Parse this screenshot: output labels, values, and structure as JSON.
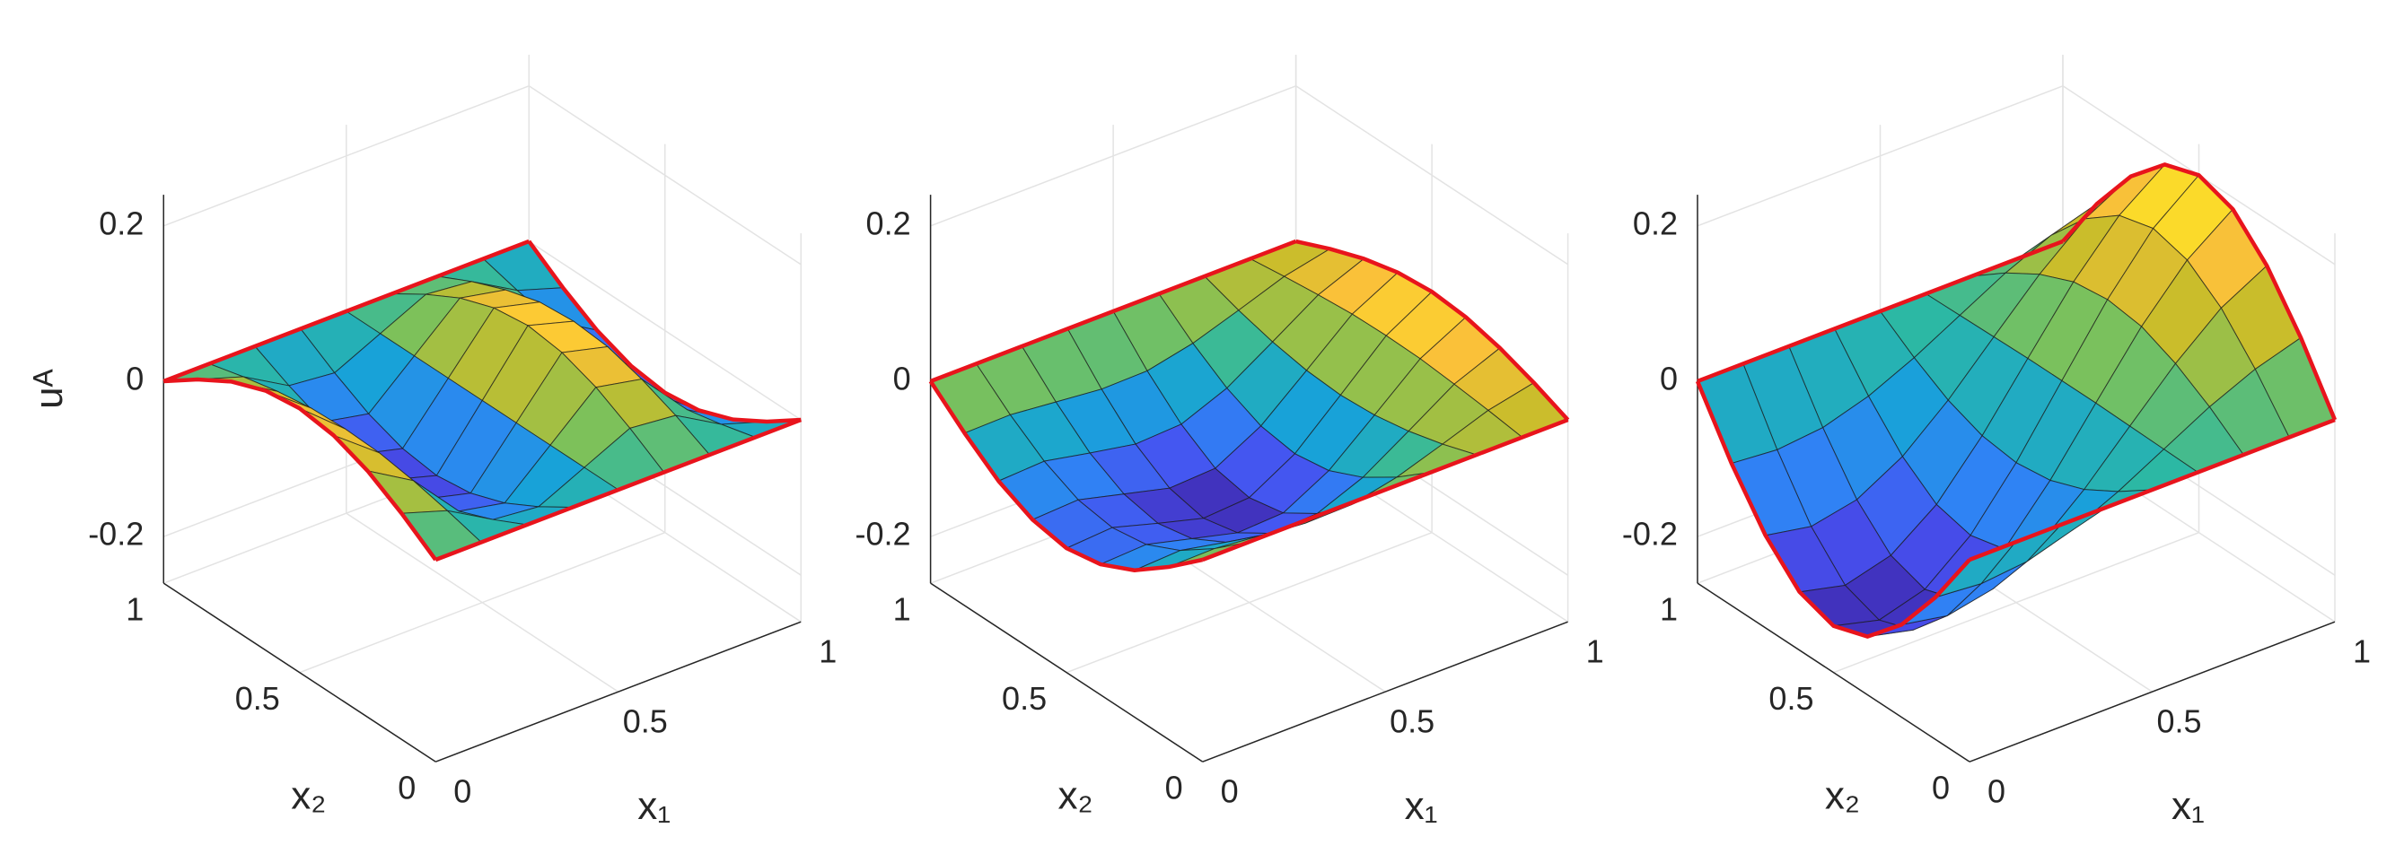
{
  "chart_data": [
    {
      "type": "surface",
      "colormap": "parula",
      "grid": true,
      "xlabel": "x₁",
      "ylabel": "x₂",
      "zlabel": "uᴬ",
      "x": [
        0,
        0.125,
        0.25,
        0.375,
        0.5,
        0.625,
        0.75,
        0.875,
        1
      ],
      "y": [
        0,
        0.125,
        0.25,
        0.375,
        0.5,
        0.625,
        0.75,
        0.875,
        1
      ],
      "z": [
        [
          0,
          0,
          0,
          0,
          0,
          0,
          0,
          0,
          0
        ],
        [
          0.031,
          0.012,
          -0.022,
          -0.028,
          0,
          0.028,
          0.022,
          -0.012,
          -0.031
        ],
        [
          0.057,
          0.022,
          -0.04,
          -0.052,
          0,
          0.052,
          0.04,
          -0.022,
          -0.057
        ],
        [
          0.074,
          0.029,
          -0.053,
          -0.068,
          0,
          0.068,
          0.053,
          -0.029,
          -0.074
        ],
        [
          0.08,
          0.031,
          -0.057,
          -0.074,
          0,
          0.074,
          0.057,
          -0.031,
          -0.08
        ],
        [
          0.074,
          0.029,
          -0.053,
          -0.068,
          0,
          0.068,
          0.053,
          -0.029,
          -0.074
        ],
        [
          0.057,
          0.022,
          -0.04,
          -0.052,
          0,
          0.052,
          0.04,
          -0.022,
          -0.057
        ],
        [
          0.031,
          0.012,
          -0.022,
          -0.028,
          0,
          0.028,
          0.022,
          -0.012,
          -0.031
        ],
        [
          0,
          0,
          0,
          0,
          0,
          0,
          0,
          0,
          0
        ]
      ],
      "xlim": [
        0,
        1
      ],
      "ylim": [
        0,
        1
      ],
      "zlim": [
        -0.26,
        0.24
      ],
      "xticks": [
        0,
        0.5,
        1
      ],
      "yticks": [
        0,
        0.5,
        1
      ],
      "zticks": [
        -0.2,
        0,
        0.2
      ]
    },
    {
      "type": "surface",
      "colormap": "parula",
      "grid": true,
      "xlabel": "x₁",
      "ylabel": "x₂",
      "x": [
        0,
        0.125,
        0.25,
        0.375,
        0.5,
        0.625,
        0.75,
        0.875,
        1
      ],
      "y": [
        0,
        0.125,
        0.25,
        0.375,
        0.5,
        0.625,
        0.75,
        0.875,
        1
      ],
      "z": [
        [
          0,
          0,
          0,
          0,
          0,
          0,
          0,
          0,
          0
        ],
        [
          -0.038,
          -0.037,
          -0.043,
          -0.049,
          -0.048,
          -0.035,
          -0.015,
          0.006,
          0.019
        ],
        [
          -0.071,
          -0.068,
          -0.08,
          -0.091,
          -0.088,
          -0.064,
          -0.027,
          0.011,
          0.035
        ],
        [
          -0.092,
          -0.089,
          -0.104,
          -0.119,
          -0.116,
          -0.084,
          -0.035,
          0.015,
          0.046
        ],
        [
          -0.1,
          -0.096,
          -0.113,
          -0.129,
          -0.125,
          -0.091,
          -0.038,
          0.016,
          0.05
        ],
        [
          -0.092,
          -0.089,
          -0.104,
          -0.119,
          -0.116,
          -0.084,
          -0.035,
          0.015,
          0.046
        ],
        [
          -0.071,
          -0.068,
          -0.08,
          -0.091,
          -0.088,
          -0.064,
          -0.027,
          0.011,
          0.035
        ],
        [
          -0.038,
          -0.037,
          -0.043,
          -0.049,
          -0.048,
          -0.035,
          -0.015,
          0.006,
          0.019
        ],
        [
          0,
          0,
          0,
          0,
          0,
          0,
          0,
          0,
          0
        ]
      ],
      "xlim": [
        0,
        1
      ],
      "ylim": [
        0,
        1
      ],
      "zlim": [
        -0.26,
        0.24
      ],
      "xticks": [
        0,
        0.5,
        1
      ],
      "yticks": [
        0,
        0.5,
        1
      ],
      "zticks": [
        -0.2,
        0,
        0.2
      ]
    },
    {
      "type": "surface",
      "colormap": "parula",
      "grid": true,
      "xlabel": "x₁",
      "ylabel": "x₂",
      "x": [
        0,
        0.125,
        0.25,
        0.375,
        0.5,
        0.625,
        0.75,
        0.875,
        1
      ],
      "y": [
        0,
        0.125,
        0.25,
        0.375,
        0.5,
        0.625,
        0.75,
        0.875,
        1
      ],
      "z": [
        [
          0,
          0,
          0,
          0,
          0,
          0,
          0,
          0,
          0
        ],
        [
          -0.077,
          -0.082,
          -0.076,
          -0.058,
          -0.031,
          0.001,
          0.033,
          0.059,
          0.077
        ],
        [
          -0.141,
          -0.152,
          -0.14,
          -0.107,
          -0.057,
          0.002,
          0.06,
          0.109,
          0.141
        ],
        [
          -0.185,
          -0.199,
          -0.183,
          -0.14,
          -0.074,
          0.003,
          0.079,
          0.142,
          0.185
        ],
        [
          -0.2,
          -0.215,
          -0.198,
          -0.151,
          -0.08,
          0.003,
          0.085,
          0.154,
          0.2
        ],
        [
          -0.185,
          -0.199,
          -0.183,
          -0.14,
          -0.074,
          0.003,
          0.079,
          0.142,
          0.185
        ],
        [
          -0.141,
          -0.152,
          -0.14,
          -0.107,
          -0.057,
          0.002,
          0.06,
          0.109,
          0.141
        ],
        [
          -0.077,
          -0.082,
          -0.076,
          -0.058,
          -0.031,
          0.001,
          0.033,
          0.059,
          0.077
        ],
        [
          0,
          0,
          0,
          0,
          0,
          0,
          0,
          0,
          0
        ]
      ],
      "xlim": [
        0,
        1
      ],
      "ylim": [
        0,
        1
      ],
      "zlim": [
        -0.26,
        0.24
      ],
      "xticks": [
        0,
        0.5,
        1
      ],
      "yticks": [
        0,
        0.5,
        1
      ],
      "zticks": [
        -0.2,
        0,
        0.2
      ]
    }
  ]
}
